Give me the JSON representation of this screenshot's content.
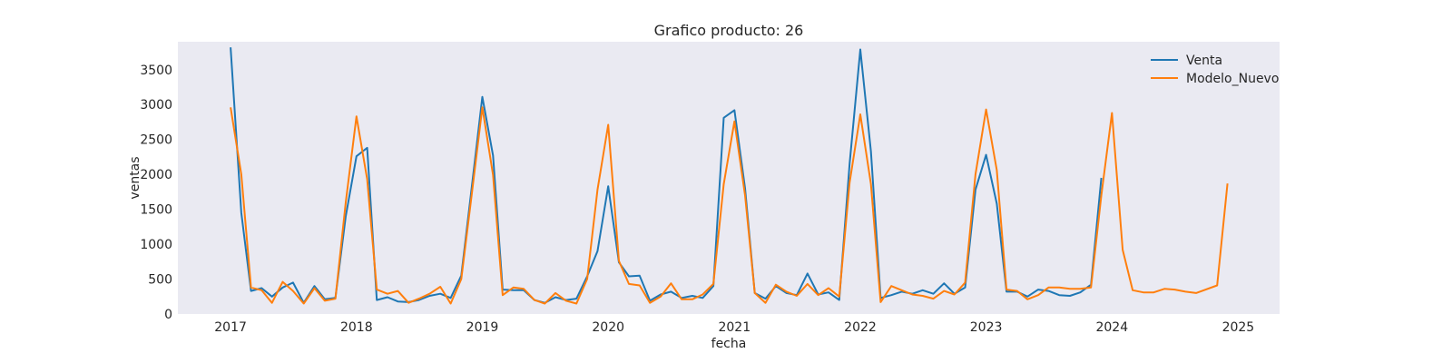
{
  "chart_data": {
    "type": "line",
    "title": "Grafico producto: 26",
    "xlabel": "fecha",
    "ylabel": "ventas",
    "grid": false,
    "legend_position": "top-right",
    "background_color": "#eaeaf2",
    "xlim": [
      "2016-08-01",
      "2025-05-01"
    ],
    "ylim": [
      0,
      3900
    ],
    "x_ticks": [
      "2017",
      "2018",
      "2019",
      "2020",
      "2021",
      "2022",
      "2023",
      "2024",
      "2025"
    ],
    "y_ticks": [
      "0",
      "500",
      "1000",
      "1500",
      "2000",
      "2500",
      "3000",
      "3500"
    ],
    "series": [
      {
        "name": "Venta",
        "color": "#1f77b4",
        "points": [
          [
            "2017-01",
            3820
          ],
          [
            "2017-02",
            1450
          ],
          [
            "2017-03",
            330
          ],
          [
            "2017-04",
            370
          ],
          [
            "2017-05",
            250
          ],
          [
            "2017-06",
            380
          ],
          [
            "2017-07",
            450
          ],
          [
            "2017-08",
            160
          ],
          [
            "2017-09",
            400
          ],
          [
            "2017-10",
            210
          ],
          [
            "2017-11",
            230
          ],
          [
            "2017-12",
            1400
          ],
          [
            "2018-01",
            2260
          ],
          [
            "2018-02",
            2380
          ],
          [
            "2018-03",
            200
          ],
          [
            "2018-04",
            240
          ],
          [
            "2018-05",
            180
          ],
          [
            "2018-06",
            170
          ],
          [
            "2018-07",
            200
          ],
          [
            "2018-08",
            260
          ],
          [
            "2018-09",
            290
          ],
          [
            "2018-10",
            230
          ],
          [
            "2018-11",
            550
          ],
          [
            "2018-12",
            1800
          ],
          [
            "2019-01",
            3110
          ],
          [
            "2019-02",
            2270
          ],
          [
            "2019-03",
            350
          ],
          [
            "2019-04",
            340
          ],
          [
            "2019-05",
            340
          ],
          [
            "2019-06",
            200
          ],
          [
            "2019-07",
            160
          ],
          [
            "2019-08",
            240
          ],
          [
            "2019-09",
            200
          ],
          [
            "2019-10",
            220
          ],
          [
            "2019-11",
            540
          ],
          [
            "2019-12",
            900
          ],
          [
            "2020-01",
            1830
          ],
          [
            "2020-02",
            740
          ],
          [
            "2020-03",
            540
          ],
          [
            "2020-04",
            550
          ],
          [
            "2020-05",
            190
          ],
          [
            "2020-06",
            280
          ],
          [
            "2020-07",
            320
          ],
          [
            "2020-08",
            230
          ],
          [
            "2020-09",
            260
          ],
          [
            "2020-10",
            230
          ],
          [
            "2020-11",
            400
          ],
          [
            "2020-12",
            2810
          ],
          [
            "2021-01",
            2920
          ],
          [
            "2021-02",
            1800
          ],
          [
            "2021-03",
            300
          ],
          [
            "2021-04",
            220
          ],
          [
            "2021-05",
            400
          ],
          [
            "2021-06",
            300
          ],
          [
            "2021-07",
            270
          ],
          [
            "2021-08",
            580
          ],
          [
            "2021-09",
            280
          ],
          [
            "2021-10",
            310
          ],
          [
            "2021-11",
            200
          ],
          [
            "2021-12",
            2150
          ],
          [
            "2022-01",
            3790
          ],
          [
            "2022-02",
            2330
          ],
          [
            "2022-03",
            230
          ],
          [
            "2022-04",
            270
          ],
          [
            "2022-05",
            320
          ],
          [
            "2022-06",
            290
          ],
          [
            "2022-07",
            340
          ],
          [
            "2022-08",
            290
          ],
          [
            "2022-09",
            440
          ],
          [
            "2022-10",
            290
          ],
          [
            "2022-11",
            380
          ],
          [
            "2022-12",
            1780
          ],
          [
            "2023-01",
            2280
          ],
          [
            "2023-02",
            1580
          ],
          [
            "2023-03",
            320
          ],
          [
            "2023-04",
            320
          ],
          [
            "2023-05",
            250
          ],
          [
            "2023-06",
            350
          ],
          [
            "2023-07",
            330
          ],
          [
            "2023-08",
            270
          ],
          [
            "2023-09",
            260
          ],
          [
            "2023-10",
            310
          ],
          [
            "2023-11",
            420
          ],
          [
            "2023-12",
            1950
          ]
        ]
      },
      {
        "name": "Modelo_Nuevo",
        "color": "#ff7f0e",
        "points": [
          [
            "2017-01",
            2960
          ],
          [
            "2017-02",
            2000
          ],
          [
            "2017-03",
            380
          ],
          [
            "2017-04",
            340
          ],
          [
            "2017-05",
            160
          ],
          [
            "2017-06",
            460
          ],
          [
            "2017-07",
            330
          ],
          [
            "2017-08",
            150
          ],
          [
            "2017-09",
            370
          ],
          [
            "2017-10",
            190
          ],
          [
            "2017-11",
            220
          ],
          [
            "2017-12",
            1600
          ],
          [
            "2018-01",
            2830
          ],
          [
            "2018-02",
            1930
          ],
          [
            "2018-03",
            350
          ],
          [
            "2018-04",
            290
          ],
          [
            "2018-05",
            330
          ],
          [
            "2018-06",
            160
          ],
          [
            "2018-07",
            220
          ],
          [
            "2018-08",
            290
          ],
          [
            "2018-09",
            390
          ],
          [
            "2018-10",
            150
          ],
          [
            "2018-11",
            500
          ],
          [
            "2018-12",
            1700
          ],
          [
            "2019-01",
            2960
          ],
          [
            "2019-02",
            1990
          ],
          [
            "2019-03",
            270
          ],
          [
            "2019-04",
            380
          ],
          [
            "2019-05",
            360
          ],
          [
            "2019-06",
            200
          ],
          [
            "2019-07",
            150
          ],
          [
            "2019-08",
            300
          ],
          [
            "2019-09",
            190
          ],
          [
            "2019-10",
            150
          ],
          [
            "2019-11",
            500
          ],
          [
            "2019-12",
            1780
          ],
          [
            "2020-01",
            2710
          ],
          [
            "2020-02",
            760
          ],
          [
            "2020-03",
            430
          ],
          [
            "2020-04",
            410
          ],
          [
            "2020-05",
            160
          ],
          [
            "2020-06",
            250
          ],
          [
            "2020-07",
            440
          ],
          [
            "2020-08",
            210
          ],
          [
            "2020-09",
            210
          ],
          [
            "2020-10",
            280
          ],
          [
            "2020-11",
            430
          ],
          [
            "2020-12",
            1860
          ],
          [
            "2021-01",
            2760
          ],
          [
            "2021-02",
            1700
          ],
          [
            "2021-03",
            300
          ],
          [
            "2021-04",
            160
          ],
          [
            "2021-05",
            420
          ],
          [
            "2021-06",
            320
          ],
          [
            "2021-07",
            260
          ],
          [
            "2021-08",
            430
          ],
          [
            "2021-09",
            270
          ],
          [
            "2021-10",
            370
          ],
          [
            "2021-11",
            250
          ],
          [
            "2021-12",
            1880
          ],
          [
            "2022-01",
            2860
          ],
          [
            "2022-02",
            1860
          ],
          [
            "2022-03",
            170
          ],
          [
            "2022-04",
            400
          ],
          [
            "2022-05",
            340
          ],
          [
            "2022-06",
            280
          ],
          [
            "2022-07",
            260
          ],
          [
            "2022-08",
            220
          ],
          [
            "2022-09",
            330
          ],
          [
            "2022-10",
            280
          ],
          [
            "2022-11",
            450
          ],
          [
            "2022-12",
            2000
          ],
          [
            "2023-01",
            2930
          ],
          [
            "2023-02",
            2060
          ],
          [
            "2023-03",
            350
          ],
          [
            "2023-04",
            330
          ],
          [
            "2023-05",
            210
          ],
          [
            "2023-06",
            270
          ],
          [
            "2023-07",
            380
          ],
          [
            "2023-08",
            380
          ],
          [
            "2023-09",
            360
          ],
          [
            "2023-10",
            360
          ],
          [
            "2023-11",
            380
          ],
          [
            "2023-12",
            1700
          ],
          [
            "2024-01",
            2880
          ],
          [
            "2024-02",
            920
          ],
          [
            "2024-03",
            340
          ],
          [
            "2024-04",
            310
          ],
          [
            "2024-05",
            310
          ],
          [
            "2024-06",
            360
          ],
          [
            "2024-07",
            350
          ],
          [
            "2024-08",
            320
          ],
          [
            "2024-09",
            300
          ],
          [
            "2024-11",
            410
          ],
          [
            "2024-12",
            1870
          ]
        ]
      }
    ]
  }
}
